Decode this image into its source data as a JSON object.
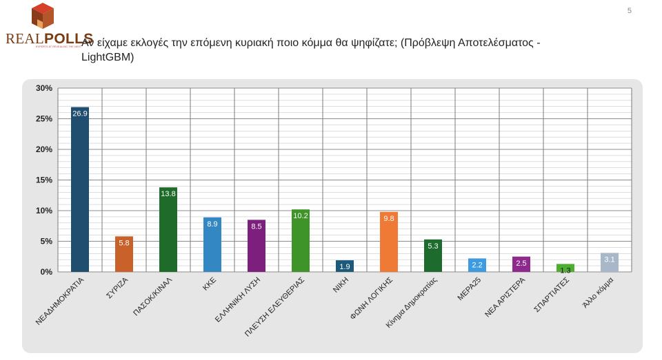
{
  "brand": {
    "name_part1": "REAL",
    "name_part2": "POLLS",
    "tagline": "EXPERTS AT REVEALING THE NEXT"
  },
  "page_number": "5",
  "title": "Αν είχαμε εκλογές την επόμενη κυριακή ποιο κόμμα θα ψηφίζατε; (Πρόβλεψη Αποτελέσματος - LightGBM)",
  "colors": {
    "ΝΕΑ ΔΗΜΟΚΡΑΤΙΑ": "#1f4e6e",
    "ΣΥΡΙΖΑ": "#c8612a",
    "ΠΑΣΟΚ/ΚΙΝΑΛ": "#1e6b2a",
    "ΚΚΕ": "#3388c4",
    "ΕΛΛΗΝΙΚΗ ΛΥΣΗ": "#7d1f7d",
    "ΠΛΕΥΣΗ ΕΛΕΥΘΕΡΙΑΣ": "#3e9428",
    "ΝΙΚΗ": "#1d5a7a",
    "ΦΩΝΗ ΛΟΓΙΚΗΣ": "#ef7a35",
    "Κίνημα Δημοκρατίας": "#1d6b2d",
    "ΜΕΡΑ25": "#3d9be0",
    "ΝΕΑ ΑΡΙΣΤΕΡΑ": "#8e2a8e",
    "ΣΠΑΡΤΙΑΤΕΣ": "#4fae32",
    "Άλλο κόμμα": "#a9b8c9"
  },
  "chart_data": {
    "type": "bar",
    "title": "",
    "xlabel": "",
    "ylabel": "",
    "categories": [
      "ΝΕΑ ΔΗΜΟΚΡΑΤΙΑ",
      "ΣΥΡΙΖΑ",
      "ΠΑΣΟΚ/ΚΙΝΑΛ",
      "ΚΚΕ",
      "ΕΛΛΗΝΙΚΗ ΛΥΣΗ",
      "ΠΛΕΥΣΗ ΕΛΕΥΘΕΡΙΑΣ",
      "ΝΙΚΗ",
      "ΦΩΝΗ ΛΟΓΙΚΗΣ",
      "Κίνημα Δημοκρατίας",
      "ΜΕΡΑ25",
      "ΝΕΑ ΑΡΙΣΤΕΡΑ",
      "ΣΠΑΡΤΙΑΤΕΣ",
      "Άλλο κόμμα"
    ],
    "category_labels": [
      "ΝΕΑΔΗΜΟΚΡΑΤΙΑ",
      "ΣΥΡΙΖΑ",
      "ΠΑΣΟΚ/ΚΙΝΑΛ",
      "ΚΚΕ",
      "ΕΛΛΗΝΙΚΗ ΛΥΣΗ",
      "ΠΛΕΥΣΗ ΕΛΕΥΘΕΡΙΑΣ",
      "ΝΙΚΗ",
      "ΦΩΝΗ ΛΟΓΙΚΗΣ",
      "Κίνημα Δημοκρατίας",
      "ΜΕΡΑ25",
      "ΝΕΑ ΑΡΙΣΤΕΡΑ",
      "ΣΠΑΡΤΙΑΤΕΣ",
      "Άλλο κόμμα"
    ],
    "values": [
      26.9,
      5.8,
      13.8,
      8.9,
      8.5,
      10.2,
      1.9,
      9.8,
      5.3,
      2.2,
      2.5,
      1.3,
      3.1
    ],
    "data_labels": [
      "26.9",
      "5.8",
      "13.8",
      "8.9",
      "8.5",
      "10.2",
      "1.9",
      "9.8",
      "5.3",
      "2.2",
      "2.5",
      "1.3",
      "3.1"
    ],
    "ylim": [
      0,
      30
    ],
    "y_ticks": [
      0,
      5,
      10,
      15,
      20,
      25,
      30
    ],
    "y_tick_labels": [
      "0%",
      "5%",
      "10%",
      "15%",
      "20%",
      "25%",
      "30%"
    ],
    "grid": true,
    "legend": "none"
  }
}
